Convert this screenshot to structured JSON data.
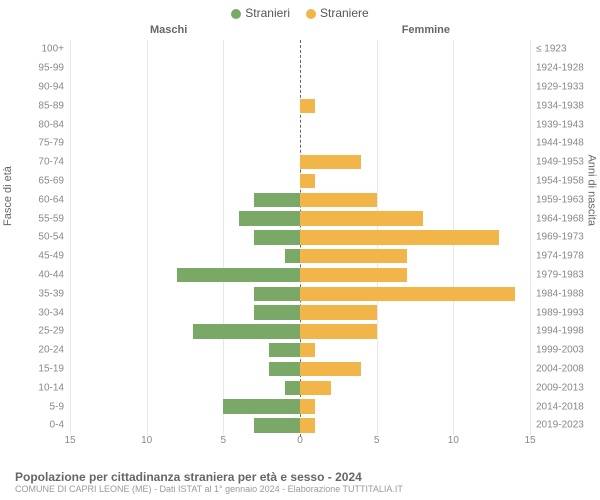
{
  "chart": {
    "type": "population-pyramid",
    "legend": [
      {
        "label": "Stranieri",
        "color": "#7aa867"
      },
      {
        "label": "Straniere",
        "color": "#f1b54a"
      }
    ],
    "header_left": "Maschi",
    "header_right": "Femmine",
    "y_axis_left_label": "Fasce di età",
    "y_axis_right_label": "Anni di nascita",
    "x_axis": {
      "min": -15,
      "max": 15,
      "ticks_left": [
        15,
        10,
        5,
        0
      ],
      "ticks_right": [
        0,
        5,
        10,
        15
      ]
    },
    "row_height_pct": 4.76,
    "grid_color": "#e8e8e8",
    "center_line_color": "#666666",
    "background_color": "#ffffff",
    "tick_fontsize": 10,
    "tick_color": "#888888",
    "label_fontsize": 10,
    "bar_height_pct": 76,
    "data": [
      {
        "age": "100+",
        "birth": "≤ 1923",
        "m": 0,
        "f": 0
      },
      {
        "age": "95-99",
        "birth": "1924-1928",
        "m": 0,
        "f": 0
      },
      {
        "age": "90-94",
        "birth": "1929-1933",
        "m": 0,
        "f": 0
      },
      {
        "age": "85-89",
        "birth": "1934-1938",
        "m": 0,
        "f": 1
      },
      {
        "age": "80-84",
        "birth": "1939-1943",
        "m": 0,
        "f": 0
      },
      {
        "age": "75-79",
        "birth": "1944-1948",
        "m": 0,
        "f": 0
      },
      {
        "age": "70-74",
        "birth": "1949-1953",
        "m": 0,
        "f": 4
      },
      {
        "age": "65-69",
        "birth": "1954-1958",
        "m": 0,
        "f": 1
      },
      {
        "age": "60-64",
        "birth": "1959-1963",
        "m": 3,
        "f": 5
      },
      {
        "age": "55-59",
        "birth": "1964-1968",
        "m": 4,
        "f": 8
      },
      {
        "age": "50-54",
        "birth": "1969-1973",
        "m": 3,
        "f": 13
      },
      {
        "age": "45-49",
        "birth": "1974-1978",
        "m": 1,
        "f": 7
      },
      {
        "age": "40-44",
        "birth": "1979-1983",
        "m": 8,
        "f": 7
      },
      {
        "age": "35-39",
        "birth": "1984-1988",
        "m": 3,
        "f": 14
      },
      {
        "age": "30-34",
        "birth": "1989-1993",
        "m": 3,
        "f": 5
      },
      {
        "age": "25-29",
        "birth": "1994-1998",
        "m": 7,
        "f": 5
      },
      {
        "age": "20-24",
        "birth": "1999-2003",
        "m": 2,
        "f": 1
      },
      {
        "age": "15-19",
        "birth": "2004-2008",
        "m": 2,
        "f": 4
      },
      {
        "age": "10-14",
        "birth": "2009-2013",
        "m": 1,
        "f": 2
      },
      {
        "age": "5-9",
        "birth": "2014-2018",
        "m": 5,
        "f": 1
      },
      {
        "age": "0-4",
        "birth": "2019-2023",
        "m": 3,
        "f": 1
      }
    ],
    "colors": {
      "male": "#7aa867",
      "female": "#f1b54a"
    }
  },
  "footer": {
    "title": "Popolazione per cittadinanza straniera per età e sesso - 2024",
    "subtitle": "COMUNE DI CAPRI LEONE (ME) - Dati ISTAT al 1° gennaio 2024 - Elaborazione TUTTITALIA.IT"
  }
}
